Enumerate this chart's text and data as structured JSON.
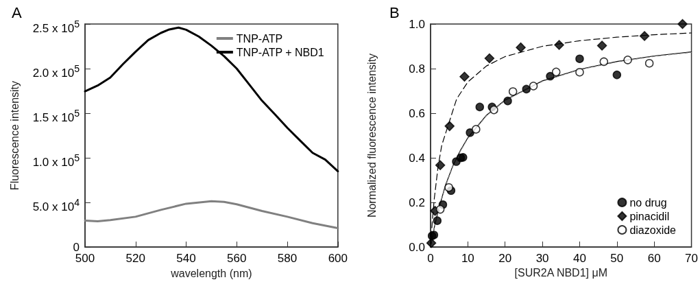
{
  "chart_data": [
    {
      "type": "line",
      "title": "A",
      "xlabel": "wavelength (nm)",
      "ylabel": "Fluorescence intensity",
      "xlim": [
        500,
        600
      ],
      "xticks": [
        500,
        520,
        540,
        560,
        580,
        600
      ],
      "ylim": [
        0,
        250000
      ],
      "yticks": [
        0,
        {
          "value": 50000,
          "label": "5.0 x 10$^{4}$"
        },
        {
          "value": 100000,
          "label": "1.0 x 10$^{5}$"
        },
        {
          "value": 150000,
          "label": "1.5 x 10$^{5}$"
        },
        {
          "value": 200000,
          "label": "2.0 x 10$^{5}$"
        },
        {
          "value": 250000,
          "label": "2.5 x 10$^{5}$"
        }
      ],
      "grid": false,
      "legend": "top right",
      "marker": "none",
      "line_style": "solid",
      "series": [
        {
          "name": "TNP-ATP",
          "color": "#808080",
          "x": [
            500,
            505,
            510,
            520,
            530,
            540,
            550,
            555,
            560,
            570,
            580,
            590,
            600
          ],
          "values": [
            29700,
            28900,
            30200,
            34000,
            41700,
            48600,
            51400,
            50600,
            48000,
            40400,
            34000,
            26800,
            21200
          ]
        },
        {
          "name": "TNP-ATP + NBD1",
          "color": "#000000",
          "x": [
            500,
            505,
            510,
            515,
            520,
            525,
            530,
            533,
            537,
            540,
            545,
            550,
            555,
            560,
            565,
            570,
            575,
            580,
            585,
            590,
            595,
            600
          ],
          "values": [
            174600,
            181000,
            190000,
            205000,
            219000,
            232000,
            240000,
            243600,
            246000,
            243600,
            236000,
            225700,
            214000,
            200000,
            182000,
            164000,
            149000,
            133700,
            119600,
            105600,
            98000,
            85000
          ]
        }
      ]
    },
    {
      "type": "scatter",
      "title": "B",
      "xlabel": "[SUR2A NBD1] μM",
      "ylabel": "Normalized fluorescence intensity",
      "xlim": [
        0,
        70
      ],
      "xticks": [
        0,
        10,
        20,
        30,
        40,
        50,
        60,
        70
      ],
      "ylim": [
        0,
        1
      ],
      "yticks": [
        {
          "value": 0,
          "label": "0.0"
        },
        0.2,
        0.4,
        0.6,
        0.8,
        {
          "value": 1,
          "label": "1.0"
        }
      ],
      "grid": false,
      "legend": "bottom right",
      "series": [
        {
          "name": "no drug",
          "color": "#000000",
          "marker": "circle",
          "x": [
            0.4,
            0.9,
            1.8,
            3.3,
            5.5,
            6.9,
            8.1,
            8.7,
            10.6,
            13.2,
            16.5,
            20.7,
            25.7,
            32.1,
            40.0,
            50.0
          ],
          "values": [
            0.05,
            0.054,
            0.118,
            0.19,
            0.253,
            0.383,
            0.4,
            0.402,
            0.513,
            0.628,
            0.628,
            0.655,
            0.708,
            0.766,
            0.844,
            0.772
          ]
        },
        {
          "name": "pinacidil",
          "color": "#000000",
          "marker": "diamond",
          "x": [
            0.2,
            1.2,
            2.6,
            5.1,
            9.1,
            15.8,
            24.2,
            34.5,
            46.0,
            57.4,
            67.6
          ],
          "values": [
            0.018,
            0.162,
            0.367,
            0.542,
            0.764,
            0.846,
            0.895,
            0.906,
            0.903,
            0.946,
            1.0
          ]
        },
        {
          "name": "diazoxide",
          "color": "#ffffff",
          "marker": "circle",
          "x": [
            2.6,
            4.9,
            12.2,
            17.0,
            22.1,
            27.6,
            33.7,
            40.0,
            46.5,
            52.9,
            58.7
          ],
          "values": [
            0.169,
            0.267,
            0.528,
            0.615,
            0.697,
            0.722,
            0.785,
            0.784,
            0.831,
            0.839,
            0.824
          ]
        },
        {
          "type": "line",
          "color": "#000000",
          "line_style": "solid",
          "marker": "none",
          "x": [
            0,
            1,
            2,
            4,
            6,
            8,
            10,
            15,
            20,
            30,
            40,
            50,
            60,
            70
          ],
          "values": [
            0,
            0.087,
            0.16,
            0.277,
            0.365,
            0.433,
            0.49,
            0.591,
            0.659,
            0.745,
            0.797,
            0.832,
            0.857,
            0.875
          ]
        },
        {
          "type": "line",
          "color": "#000000",
          "line_style": "dashed",
          "marker": "none",
          "x": [
            0,
            0.5,
            1,
            2,
            3,
            5,
            7,
            10,
            15,
            20,
            30,
            40,
            50,
            60,
            70
          ],
          "values": [
            0,
            0.122,
            0.217,
            0.358,
            0.456,
            0.56,
            0.664,
            0.74,
            0.812,
            0.854,
            0.9,
            0.925,
            0.941,
            0.952,
            0.96
          ]
        },
        {
          "type": "line",
          "color": "#808080",
          "line_style": "dotted",
          "marker": "none",
          "x": [
            0,
            1,
            2,
            4,
            6,
            8,
            10,
            15,
            20,
            30,
            40,
            50,
            60,
            70
          ],
          "values": [
            0,
            0.085,
            0.157,
            0.273,
            0.362,
            0.43,
            0.487,
            0.589,
            0.657,
            0.743,
            0.795,
            0.83,
            0.855,
            0.873
          ]
        }
      ]
    }
  ]
}
